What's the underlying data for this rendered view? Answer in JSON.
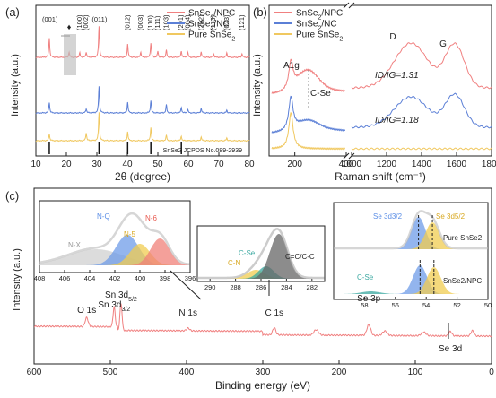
{
  "chart_data": [
    {
      "type": "line",
      "panel": "(a)",
      "xlabel": "2θ (degree)",
      "ylabel": "Intensity (a.u.)",
      "xlim": [
        10,
        80
      ],
      "x_ticks": [
        "10",
        "20",
        "30",
        "40",
        "50",
        "60",
        "70",
        "80"
      ],
      "series": [
        {
          "name": "SnSe2/NPC",
          "color": "#f08080",
          "peaks": [
            [
              14.4,
              22
            ],
            [
              20.9,
              6
            ],
            [
              24.4,
              5
            ],
            [
              26.5,
              6
            ],
            [
              30.7,
              35
            ],
            [
              40.1,
              15
            ],
            [
              44.4,
              6
            ],
            [
              47.7,
              16
            ],
            [
              50.0,
              7
            ],
            [
              52.8,
              8
            ],
            [
              57.7,
              7
            ],
            [
              59.8,
              6
            ],
            [
              64.2,
              6
            ],
            [
              68.3,
              4
            ],
            [
              72.6,
              5
            ],
            [
              77.6,
              4
            ]
          ]
        },
        {
          "name": "SnSe2/NC",
          "color": "#5b7fd6",
          "peaks": [
            [
              14.4,
              12
            ],
            [
              26.5,
              5
            ],
            [
              30.7,
              30
            ],
            [
              40.1,
              12
            ],
            [
              47.7,
              14
            ],
            [
              52.8,
              9
            ],
            [
              57.7,
              6
            ],
            [
              59.8,
              4
            ],
            [
              64.2,
              5
            ],
            [
              72.6,
              3
            ]
          ]
        },
        {
          "name": "Pure SnSe2",
          "color": "#f0c860",
          "peaks": [
            [
              14.4,
              8
            ],
            [
              26.5,
              9
            ],
            [
              30.7,
              32
            ],
            [
              40.1,
              10
            ],
            [
              47.7,
              15
            ],
            [
              52.8,
              6
            ],
            [
              57.7,
              5
            ],
            [
              64.2,
              4
            ],
            [
              72.6,
              3
            ]
          ]
        }
      ],
      "reference_lines": [
        14.4,
        30.7,
        40.1,
        47.7,
        57.7
      ],
      "peak_labels": [
        {
          "x": 14.4,
          "label": "(001)"
        },
        {
          "x": 24.4,
          "label": "(100)"
        },
        {
          "x": 26.5,
          "label": "(002)"
        },
        {
          "x": 30.7,
          "label": "(011)"
        },
        {
          "x": 40.1,
          "label": "(012)"
        },
        {
          "x": 44.4,
          "label": "(003)"
        },
        {
          "x": 47.7,
          "label": "(110)"
        },
        {
          "x": 50.0,
          "label": "(111)"
        },
        {
          "x": 52.8,
          "label": "(103)"
        },
        {
          "x": 57.7,
          "label": "(201)"
        },
        {
          "x": 59.8,
          "label": "(004)"
        },
        {
          "x": 64.2,
          "label": "(202)"
        },
        {
          "x": 68.3,
          "label": "(113)"
        },
        {
          "x": 72.6,
          "label": "(023)"
        },
        {
          "x": 77.6,
          "label": "(121)"
        }
      ],
      "annotation": "SnSe2 JCPDS No.089-2939",
      "marker": "♦"
    },
    {
      "type": "line",
      "panel": "(b)",
      "xlabel": "Raman shift (cm⁻¹)",
      "ylabel": "Intensity (a.u.)",
      "segments": [
        {
          "xlim": [
            100,
            400
          ],
          "ticks": [
            "200",
            "400"
          ]
        },
        {
          "xlim": [
            1000,
            1800
          ],
          "ticks": [
            "1000",
            "1200",
            "1400",
            "1600",
            "1800"
          ]
        }
      ],
      "series": [
        {
          "name": "SnSe2/NPC",
          "color": "#f08080",
          "ratio": "ID/IG=1.31"
        },
        {
          "name": "SnSe2/NC",
          "color": "#5b7fd6",
          "ratio": "ID/IG=1.18"
        },
        {
          "name": "Pure SnSe2",
          "color": "#f0c860"
        }
      ],
      "annotations": {
        "a1g": "A1g",
        "cse": "C-Se",
        "d": "D",
        "g": "G"
      },
      "peaks": {
        "a1g": 185,
        "cse": 250,
        "d": 1340,
        "g": 1590
      }
    },
    {
      "type": "line",
      "panel": "(c)",
      "xlabel": "Binding energy (eV)",
      "ylabel": "Intensity (a.u.)",
      "xlim": [
        600,
        0
      ],
      "x_ticks": [
        "600",
        "500",
        "400",
        "300",
        "200",
        "100",
        "0"
      ],
      "peak_labels": [
        {
          "x": 531,
          "label": "O 1s"
        },
        {
          "x": 495,
          "label": "Sn 3d3/2"
        },
        {
          "x": 486,
          "label": "Sn 3d5/2"
        },
        {
          "x": 398,
          "label": "N 1s"
        },
        {
          "x": 285,
          "label": "C 1s"
        },
        {
          "x": 161,
          "label": "Se 3p"
        },
        {
          "x": 54,
          "label": "Se 3d"
        }
      ],
      "insets": [
        {
          "name": "N 1s",
          "xlim": [
            408,
            396
          ],
          "ticks": [
            "408",
            "406",
            "404",
            "402",
            "400",
            "398",
            "396"
          ],
          "components": [
            {
              "label": "N-X",
              "color": "#bbbbbb"
            },
            {
              "label": "N-Q",
              "color": "#5b8ee6"
            },
            {
              "label": "N-5",
              "color": "#e8c040"
            },
            {
              "label": "N-6",
              "color": "#f0706a"
            }
          ]
        },
        {
          "name": "C 1s",
          "xlim": [
            291,
            281
          ],
          "ticks": [
            "290",
            "288",
            "286",
            "284",
            "282"
          ],
          "components": [
            {
              "label": "C-Se",
              "color": "#3aa8a0"
            },
            {
              "label": "C-N",
              "color": "#e8c040"
            },
            {
              "label": "C=C/C-C",
              "color": "#555555"
            }
          ]
        },
        {
          "name": "Se 3d",
          "xlim": [
            60,
            50
          ],
          "ticks": [
            "58",
            "56",
            "54",
            "52",
            "50"
          ],
          "labels": {
            "se52": "Se 3d5/2",
            "se32": "Se 3d3/2",
            "cse": "C-Se",
            "pure": "Pure SnSe2",
            "npc": "SnSe2/NPC"
          }
        }
      ]
    }
  ]
}
